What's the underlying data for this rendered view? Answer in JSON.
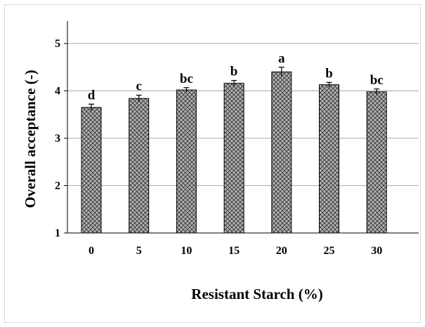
{
  "chart_data": {
    "type": "bar",
    "title": "",
    "xlabel": "Resistant Starch (%)",
    "ylabel": "Overall acceptance (-)",
    "categories": [
      "0",
      "5",
      "10",
      "15",
      "20",
      "25",
      "30"
    ],
    "values": [
      3.65,
      3.84,
      4.02,
      4.16,
      4.4,
      4.13,
      3.98
    ],
    "errors": [
      0.07,
      0.07,
      0.05,
      0.06,
      0.1,
      0.05,
      0.06
    ],
    "significance_letters": [
      "d",
      "c",
      "bc",
      "b",
      "a",
      "b",
      "bc"
    ],
    "ylim": [
      1,
      5
    ],
    "yticks": [
      "1",
      "2",
      "3",
      "4",
      "5"
    ],
    "grid": true,
    "bar_fill": "crosshatch-pattern",
    "colors": {
      "bar_fill": "#b5b5b5",
      "hatch": "#444444",
      "bar_edge": "#000000",
      "grid": "#aaaaaa",
      "axis": "#000000"
    }
  }
}
